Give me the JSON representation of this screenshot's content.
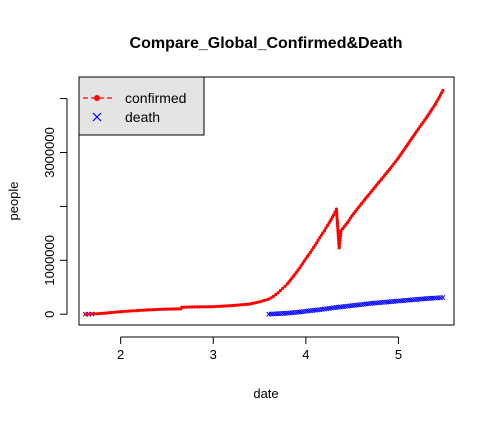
{
  "chart_data": {
    "type": "scatter",
    "title": "Compare_Global_Confirmed&Death",
    "xlabel": "date",
    "ylabel": "people",
    "xlim": [
      1.55,
      5.6
    ],
    "ylim": [
      -200000,
      4400000
    ],
    "x_ticks": [
      2,
      3,
      4,
      5
    ],
    "y_ticks": [
      0,
      1000000,
      2000000,
      3000000,
      4000000
    ],
    "y_tick_labels": [
      "0",
      "1000000",
      "",
      "3000000",
      ""
    ],
    "grid": false,
    "legend_position": "top-left",
    "series": [
      {
        "name": "confirmed",
        "color": "#ff0000",
        "marker": "dot",
        "x": [
          1.62,
          1.69,
          1.8,
          1.95,
          2.1,
          2.3,
          2.5,
          2.65,
          2.66,
          2.8,
          3.0,
          3.2,
          3.4,
          3.5,
          3.6,
          3.65,
          3.7,
          3.75,
          3.8,
          3.85,
          3.9,
          3.95,
          4.0,
          4.05,
          4.1,
          4.15,
          4.2,
          4.25,
          4.3,
          4.33,
          4.36,
          4.38,
          4.45,
          4.5,
          4.6,
          4.7,
          4.8,
          4.9,
          5.0,
          5.1,
          5.2,
          5.3,
          5.4,
          5.48
        ],
        "y": [
          0,
          5000,
          15000,
          40000,
          60000,
          80000,
          95000,
          100000,
          130000,
          135000,
          140000,
          160000,
          190000,
          230000,
          280000,
          330000,
          400000,
          480000,
          560000,
          670000,
          780000,
          900000,
          1030000,
          1150000,
          1280000,
          1420000,
          1550000,
          1690000,
          1840000,
          1950000,
          1230000,
          1550000,
          1700000,
          1830000,
          2050000,
          2260000,
          2470000,
          2680000,
          2900000,
          3150000,
          3400000,
          3640000,
          3900000,
          4150000
        ]
      },
      {
        "name": "death",
        "color": "#0000ff",
        "marker": "x",
        "x": [
          1.62,
          1.69,
          3.6,
          3.7,
          3.8,
          3.9,
          4.0,
          4.1,
          4.2,
          4.3,
          4.4,
          4.5,
          4.6,
          4.7,
          4.8,
          4.9,
          5.0,
          5.1,
          5.2,
          5.3,
          5.4,
          5.48
        ],
        "y": [
          0,
          2000,
          0,
          10000,
          20000,
          35000,
          55000,
          75000,
          95000,
          120000,
          140000,
          160000,
          180000,
          200000,
          215000,
          230000,
          245000,
          260000,
          275000,
          290000,
          300000,
          310000
        ]
      }
    ]
  }
}
